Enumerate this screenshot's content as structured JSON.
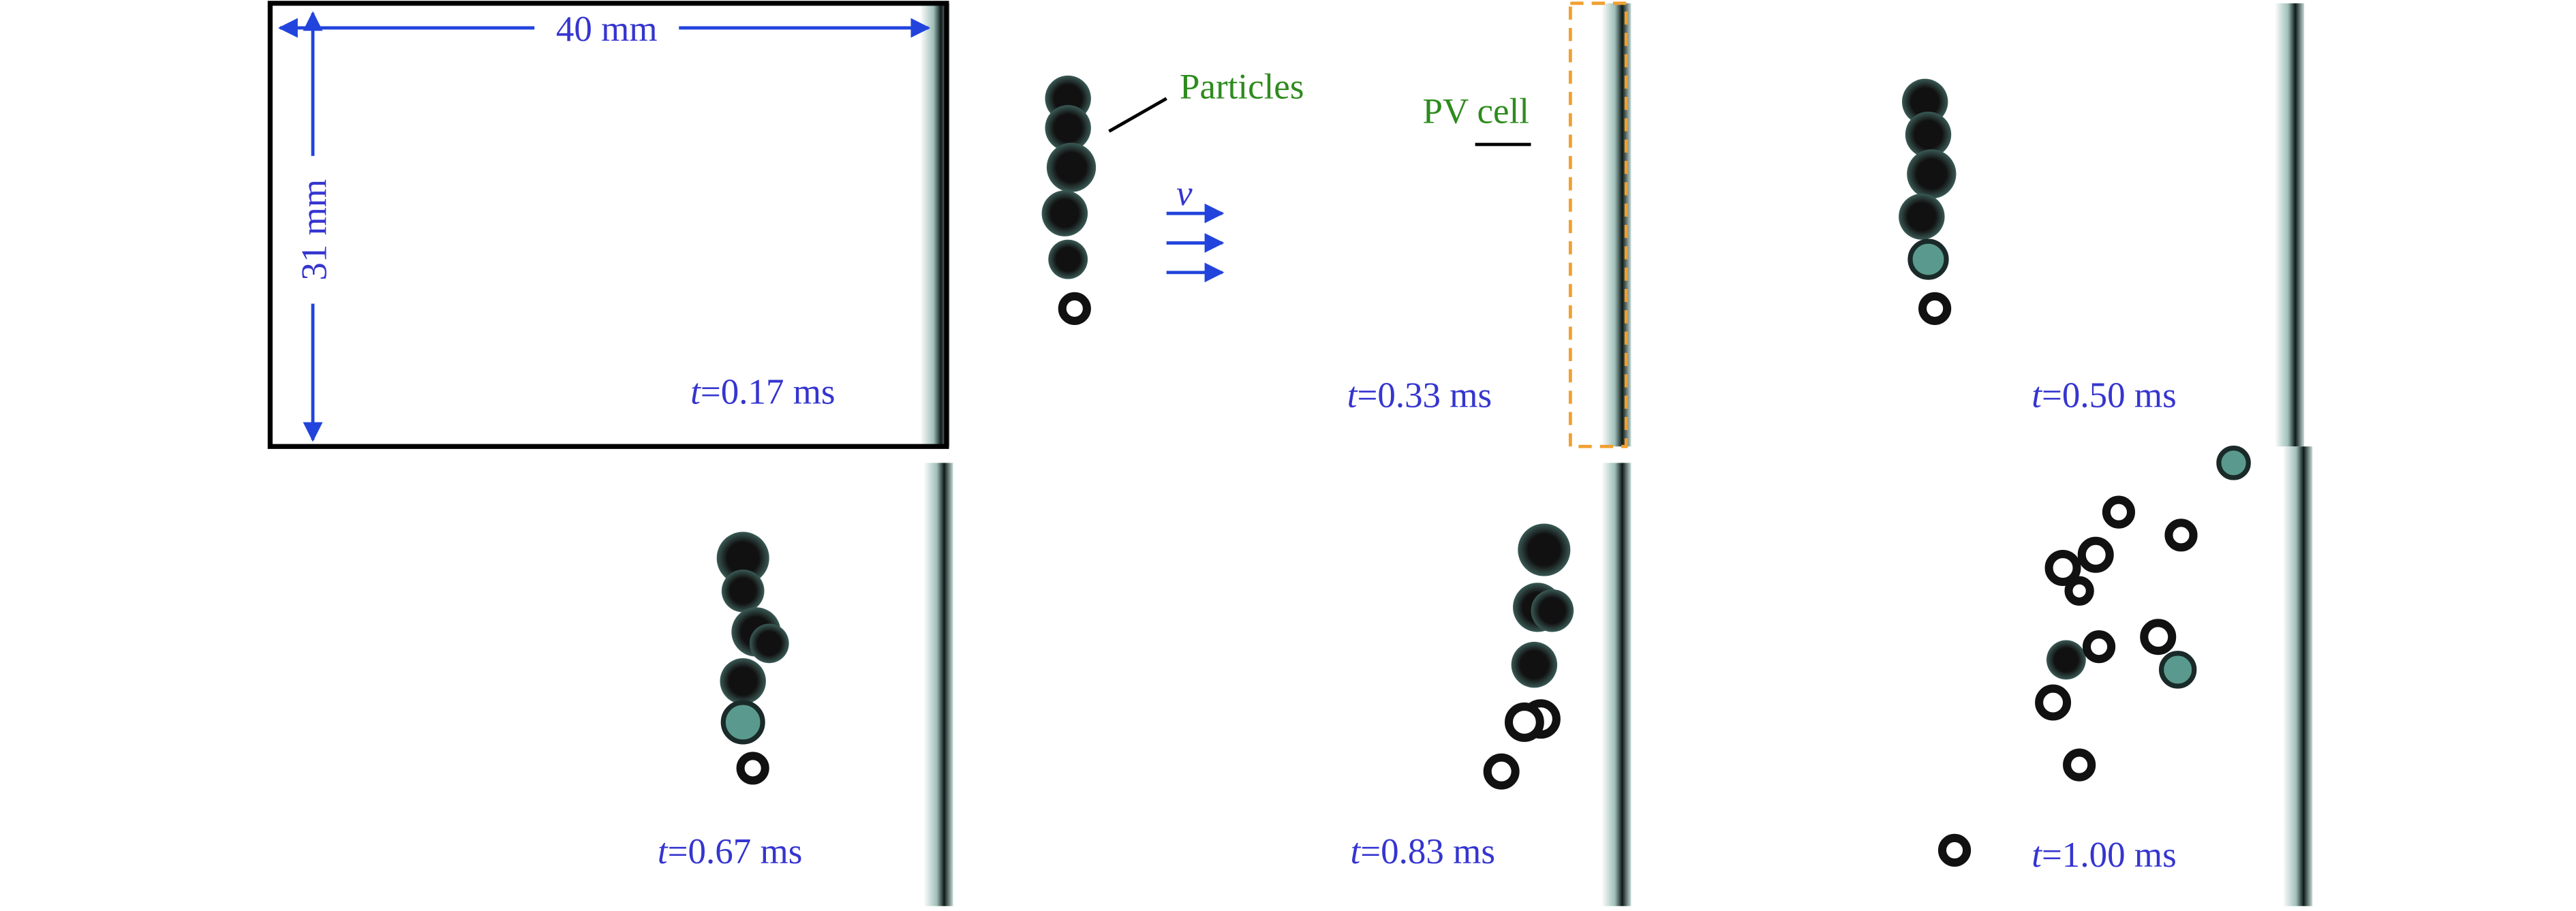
{
  "dimensions": {
    "width": "40 mm",
    "height": "31 mm"
  },
  "annotations": {
    "particles": "Particles",
    "pv_cell": "PV cell",
    "velocity": "v"
  },
  "frames": [
    {
      "variable": "t",
      "text": "=0.17 ms"
    },
    {
      "variable": "t",
      "text": "=0.33 ms"
    },
    {
      "variable": "t",
      "text": "=0.50 ms"
    },
    {
      "variable": "t",
      "text": "=0.67 ms"
    },
    {
      "variable": "t",
      "text": "=0.83 ms"
    },
    {
      "variable": "t",
      "text": "=1.00 ms"
    }
  ]
}
